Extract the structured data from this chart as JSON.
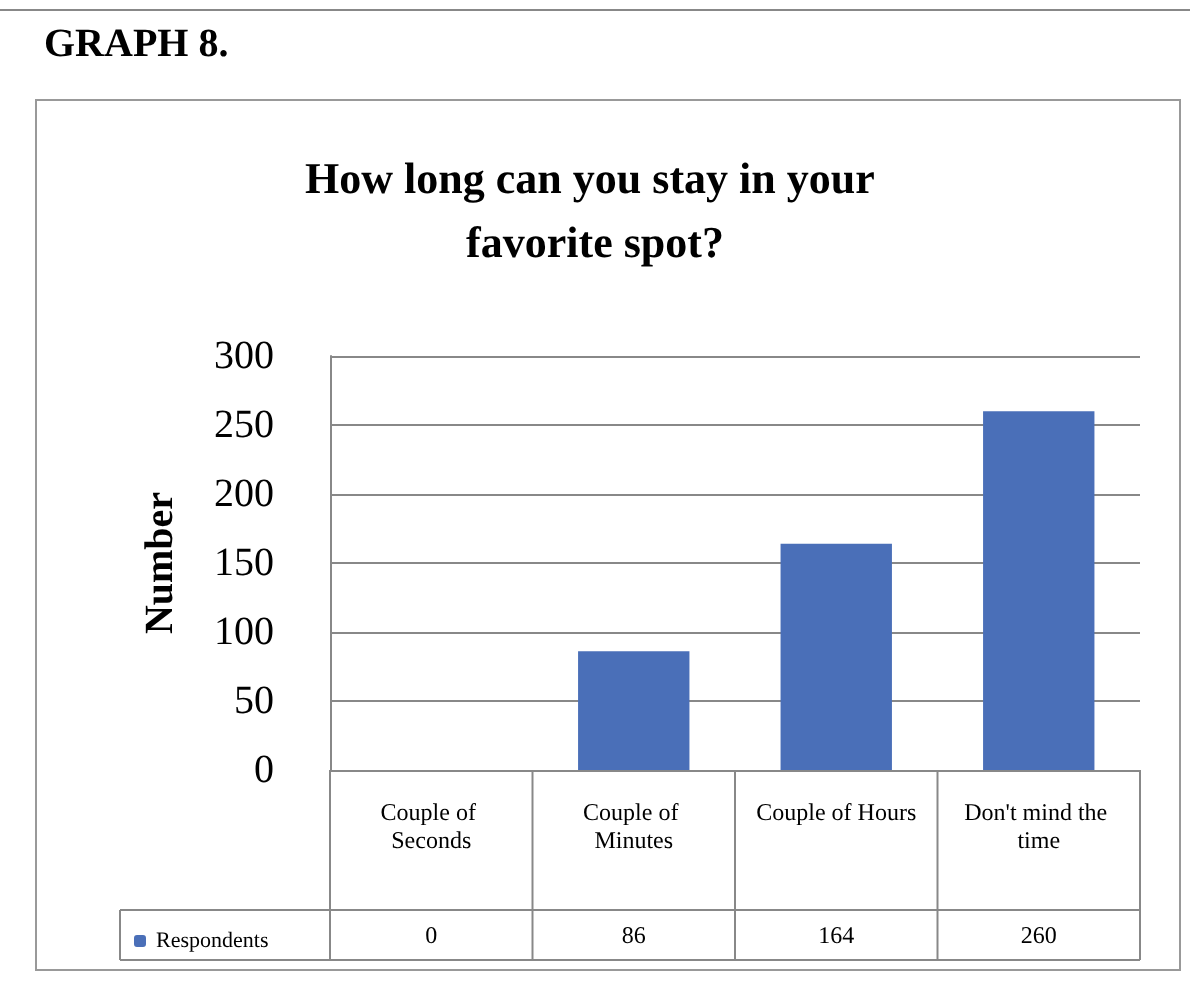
{
  "chart_data": {
    "type": "bar",
    "title": "How long can you stay in your favorite spot?",
    "ylabel": "Number",
    "annotations": [
      "GRAPH 8."
    ],
    "categories": [
      "Couple of Seconds",
      "Couple of Minutes",
      "Couple of Hours",
      "Don't mind the time"
    ],
    "series": [
      {
        "name": "Respondents",
        "color": "#4a6fb8",
        "values": [
          0,
          86,
          164,
          260
        ]
      }
    ],
    "ylim": [
      0,
      300
    ],
    "yticks": [
      0,
      50,
      100,
      150,
      200,
      250,
      300
    ],
    "grid": "y",
    "legend": "bottom",
    "data_labels": true
  }
}
